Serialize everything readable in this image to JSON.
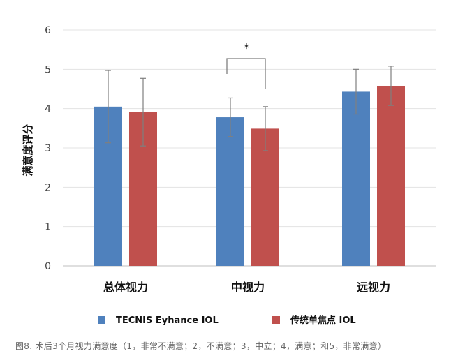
{
  "chart_data": {
    "type": "bar",
    "categories": [
      "总体视力",
      "中视力",
      "远视力"
    ],
    "series": [
      {
        "name": "TECNIS Eyhance IOL",
        "color": "#4f81bd",
        "values": [
          4.05,
          3.78,
          4.43
        ],
        "error": [
          0.92,
          0.49,
          0.57
        ]
      },
      {
        "name": "传统单焦点 IOL",
        "color": "#c0504d",
        "values": [
          3.91,
          3.49,
          4.58
        ],
        "error": [
          0.86,
          0.56,
          0.5
        ]
      }
    ],
    "ylabel": "满意度评分",
    "ylim": [
      0,
      6
    ],
    "yticks": [
      0,
      1,
      2,
      3,
      4,
      5,
      6
    ],
    "grid": true,
    "legend_position": "bottom",
    "annotations": [
      {
        "text": "*",
        "category_index": 1
      }
    ]
  },
  "caption": "图8. 术后3个月视力满意度（1，非常不满意；2，不满意；3，中立；4，满意；和5，非常满意）"
}
